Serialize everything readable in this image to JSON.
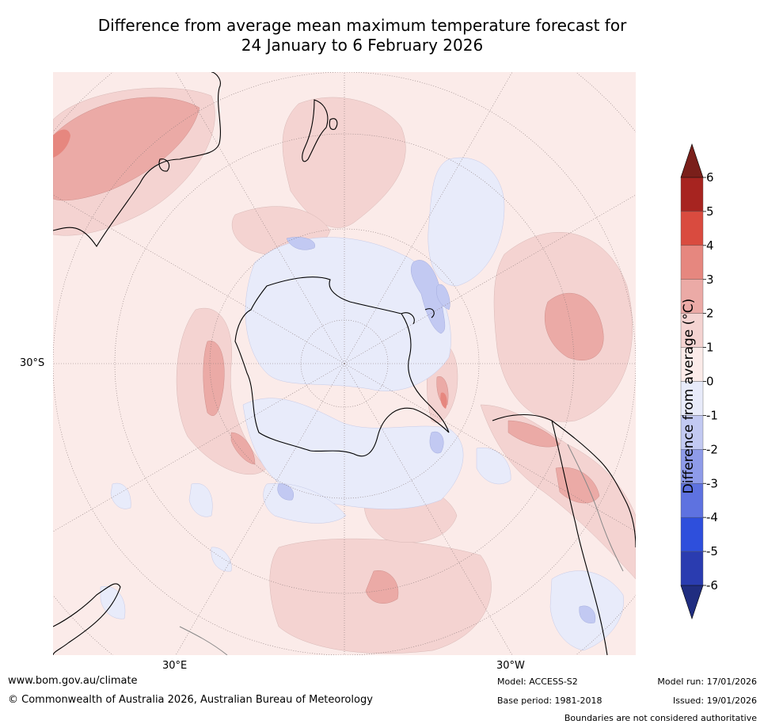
{
  "title": {
    "line1": "Difference from average mean maximum temperature forecast for",
    "line2": "24 January to 6 February 2026"
  },
  "map": {
    "projection": "south-polar-stereographic",
    "lat_label": "30°S",
    "lon_labels": {
      "east": "30°E",
      "west": "30°W"
    },
    "colors": {
      "ocean_neutral": "#fbebe9",
      "pos_1_2": "#f4d3d1",
      "pos_2_3": "#ebaaa6",
      "pos_3_4": "#e6877f",
      "neg_0_1": "#e8ebfa",
      "neg_1_2": "#c2c9f2",
      "coast": "#000000",
      "grid": "#8a7a7a"
    }
  },
  "colorbar": {
    "label": "Difference from average (°C)",
    "ticks": [
      "6",
      "5",
      "4",
      "3",
      "2",
      "1",
      "0",
      "-1",
      "-2",
      "-3",
      "-4",
      "-5",
      "-6"
    ],
    "bands": [
      {
        "range": "5 to 6",
        "color": "#a72420"
      },
      {
        "range": "4 to 5",
        "color": "#d94b3f"
      },
      {
        "range": "3 to 4",
        "color": "#e6877f"
      },
      {
        "range": "2 to 3",
        "color": "#ebaaa6"
      },
      {
        "range": "1 to 2",
        "color": "#f4d3d1"
      },
      {
        "range": "0 to 1",
        "color": "#fbebe9"
      },
      {
        "range": "-1 to 0",
        "color": "#e8ebfa"
      },
      {
        "range": "-2 to -1",
        "color": "#c2c9f2"
      },
      {
        "range": "-3 to -2",
        "color": "#8e9be9"
      },
      {
        "range": "-4 to -3",
        "color": "#5e72e0"
      },
      {
        "range": "-5 to -4",
        "color": "#2e4fdc"
      },
      {
        "range": "-6 to -5",
        "color": "#2a3cb0"
      }
    ],
    "over_color": "#7a1f1a",
    "under_color": "#202d80"
  },
  "footer": {
    "url": "www.bom.gov.au/climate",
    "copyright": "© Commonwealth of Australia 2026, Australian Bureau of Meteorology",
    "model": "Model: ACCESS-S2",
    "base_period": "Base period: 1981-2018",
    "model_run": "Model run: 17/01/2026",
    "issued": "Issued: 19/01/2026",
    "disclaimer": "Boundaries are not considered authoritative"
  }
}
